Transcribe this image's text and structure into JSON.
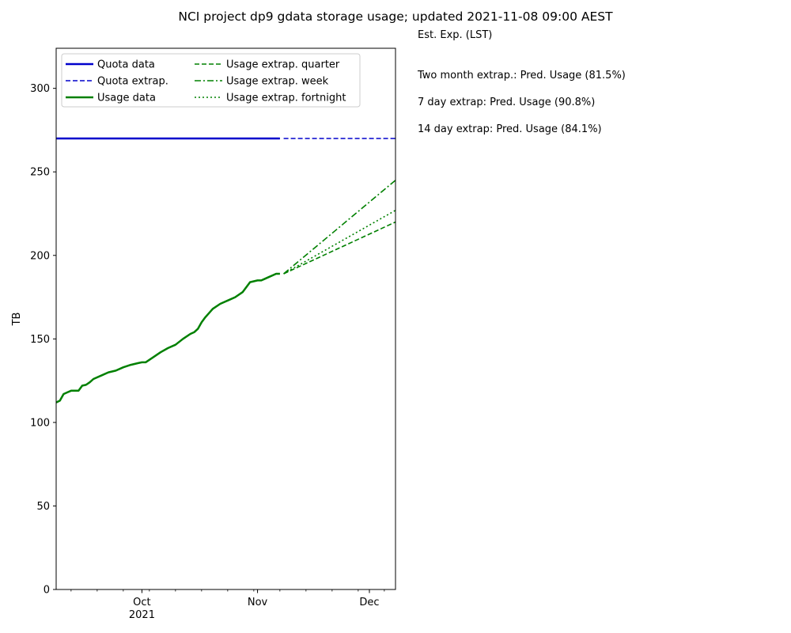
{
  "title": "NCI project dp9 gdata storage usage; updated 2021-11-08 09:00 AEST",
  "notes": {
    "heading": "Est. Exp. (LST)",
    "two_month": "Two month extrap.: Pred. Usage (81.5%)",
    "seven_day": "7 day extrap: Pred. Usage (90.8%)",
    "fourteen_day": "14 day extrap: Pred. Usage (84.1%)"
  },
  "chart_data": {
    "type": "line",
    "title": "NCI project dp9 gdata storage usage; updated 2021-11-08 09:00 AEST",
    "xlabel": "",
    "ylabel": "TB",
    "xlim": [
      "2021-09-08",
      "2021-12-08"
    ],
    "ylim": [
      0,
      324
    ],
    "yticks": [
      0,
      50,
      100,
      150,
      200,
      250,
      300
    ],
    "xticks": [
      {
        "date": "2021-10-01",
        "label": "Oct",
        "sublabel": "2021"
      },
      {
        "date": "2021-11-01",
        "label": "Nov",
        "sublabel": ""
      },
      {
        "date": "2021-12-01",
        "label": "Dec",
        "sublabel": ""
      }
    ],
    "legend_position": "top-left",
    "grid": false,
    "series": [
      {
        "name": "Quota data",
        "color": "#0000cc",
        "style": "solid",
        "x": [
          "2021-09-08",
          "2021-10-04",
          "2021-10-05",
          "2021-10-16",
          "2021-10-17",
          "2021-11-07"
        ],
        "y": [
          270,
          270,
          270,
          270,
          270,
          270
        ]
      },
      {
        "name": "Quota extrap.",
        "color": "#0000cc",
        "style": "dashed",
        "x": [
          "2021-11-08",
          "2021-12-08"
        ],
        "y": [
          270,
          270
        ]
      },
      {
        "name": "Usage data",
        "color": "#008000",
        "style": "solid",
        "x": [
          "2021-09-08",
          "2021-09-09",
          "2021-09-10",
          "2021-09-11",
          "2021-09-12",
          "2021-09-14",
          "2021-09-15",
          "2021-09-16",
          "2021-09-17",
          "2021-09-18",
          "2021-09-20",
          "2021-09-22",
          "2021-09-24",
          "2021-09-26",
          "2021-09-28",
          "2021-09-30",
          "2021-10-01",
          "2021-10-02",
          "2021-10-04",
          "2021-10-06",
          "2021-10-08",
          "2021-10-10",
          "2021-10-12",
          "2021-10-14",
          "2021-10-15",
          "2021-10-16",
          "2021-10-17",
          "2021-10-18",
          "2021-10-20",
          "2021-10-22",
          "2021-10-24",
          "2021-10-26",
          "2021-10-28",
          "2021-10-30",
          "2021-11-01",
          "2021-11-02",
          "2021-11-03",
          "2021-11-04",
          "2021-11-05",
          "2021-11-06",
          "2021-11-07"
        ],
        "y": [
          112,
          113,
          117,
          118,
          119,
          119,
          122,
          122.5,
          124,
          126,
          128,
          130,
          131,
          133,
          134.5,
          135.5,
          136,
          136,
          139,
          142,
          144.5,
          146.5,
          150,
          153,
          154,
          156,
          160,
          163,
          168,
          171,
          173,
          175,
          178,
          184,
          185,
          185,
          186,
          187,
          188,
          189,
          189
        ]
      },
      {
        "name": "Usage extrap. quarter",
        "color": "#008000",
        "style": "dashed",
        "x": [
          "2021-11-08",
          "2021-12-08"
        ],
        "y": [
          189,
          220
        ]
      },
      {
        "name": "Usage extrap. week",
        "color": "#008000",
        "style": "dashdot",
        "x": [
          "2021-11-08",
          "2021-12-08"
        ],
        "y": [
          189,
          245
        ]
      },
      {
        "name": "Usage extrap. fortnight",
        "color": "#008000",
        "style": "dotted",
        "x": [
          "2021-11-08",
          "2021-12-08"
        ],
        "y": [
          189,
          227
        ]
      }
    ]
  }
}
